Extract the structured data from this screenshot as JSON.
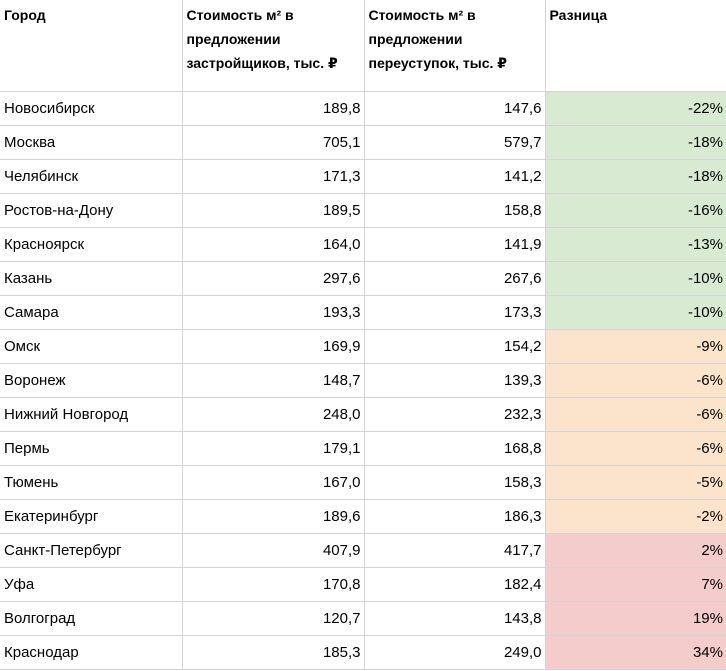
{
  "headers": {
    "city": "Город",
    "developer_price": "Стоимость м² в предложении застройщиков, тыс. ₽",
    "resale_price": "Стоимость м² в предложении переуступок, тыс. ₽",
    "difference": "Разница"
  },
  "colors": {
    "negative_strong": "#d9ead3",
    "negative_weak": "#fce4cc",
    "positive": "#f4cccc",
    "grid": "#d4d4d4"
  },
  "rows": [
    {
      "city": "Новосибирск",
      "developer": "189,8",
      "resale": "147,6",
      "diff": "-22%",
      "tone": "good"
    },
    {
      "city": "Москва",
      "developer": "705,1",
      "resale": "579,7",
      "diff": "-18%",
      "tone": "good"
    },
    {
      "city": "Челябинск",
      "developer": "171,3",
      "resale": "141,2",
      "diff": "-18%",
      "tone": "good"
    },
    {
      "city": "Ростов-на-Дону",
      "developer": "189,5",
      "resale": "158,8",
      "diff": "-16%",
      "tone": "good"
    },
    {
      "city": "Красноярск",
      "developer": "164,0",
      "resale": "141,9",
      "diff": "-13%",
      "tone": "good"
    },
    {
      "city": "Казань",
      "developer": "297,6",
      "resale": "267,6",
      "diff": "-10%",
      "tone": "good"
    },
    {
      "city": "Самара",
      "developer": "193,3",
      "resale": "173,3",
      "diff": "-10%",
      "tone": "good"
    },
    {
      "city": "Омск",
      "developer": "169,9",
      "resale": "154,2",
      "diff": "-9%",
      "tone": "mid"
    },
    {
      "city": "Воронеж",
      "developer": "148,7",
      "resale": "139,3",
      "diff": "-6%",
      "tone": "mid"
    },
    {
      "city": "Нижний Новгород",
      "developer": "248,0",
      "resale": "232,3",
      "diff": "-6%",
      "tone": "mid"
    },
    {
      "city": "Пермь",
      "developer": "179,1",
      "resale": "168,8",
      "diff": "-6%",
      "tone": "mid"
    },
    {
      "city": "Тюмень",
      "developer": "167,0",
      "resale": "158,3",
      "diff": "-5%",
      "tone": "mid"
    },
    {
      "city": "Екатеринбург",
      "developer": "189,6",
      "resale": "186,3",
      "diff": "-2%",
      "tone": "mid"
    },
    {
      "city": "Санкт-Петербург",
      "developer": "407,9",
      "resale": "417,7",
      "diff": "2%",
      "tone": "bad"
    },
    {
      "city": "Уфа",
      "developer": "170,8",
      "resale": "182,4",
      "diff": "7%",
      "tone": "bad"
    },
    {
      "city": "Волгоград",
      "developer": "120,7",
      "resale": "143,8",
      "diff": "19%",
      "tone": "bad"
    },
    {
      "city": "Краснодар",
      "developer": "185,3",
      "resale": "249,0",
      "diff": "34%",
      "tone": "bad"
    }
  ]
}
